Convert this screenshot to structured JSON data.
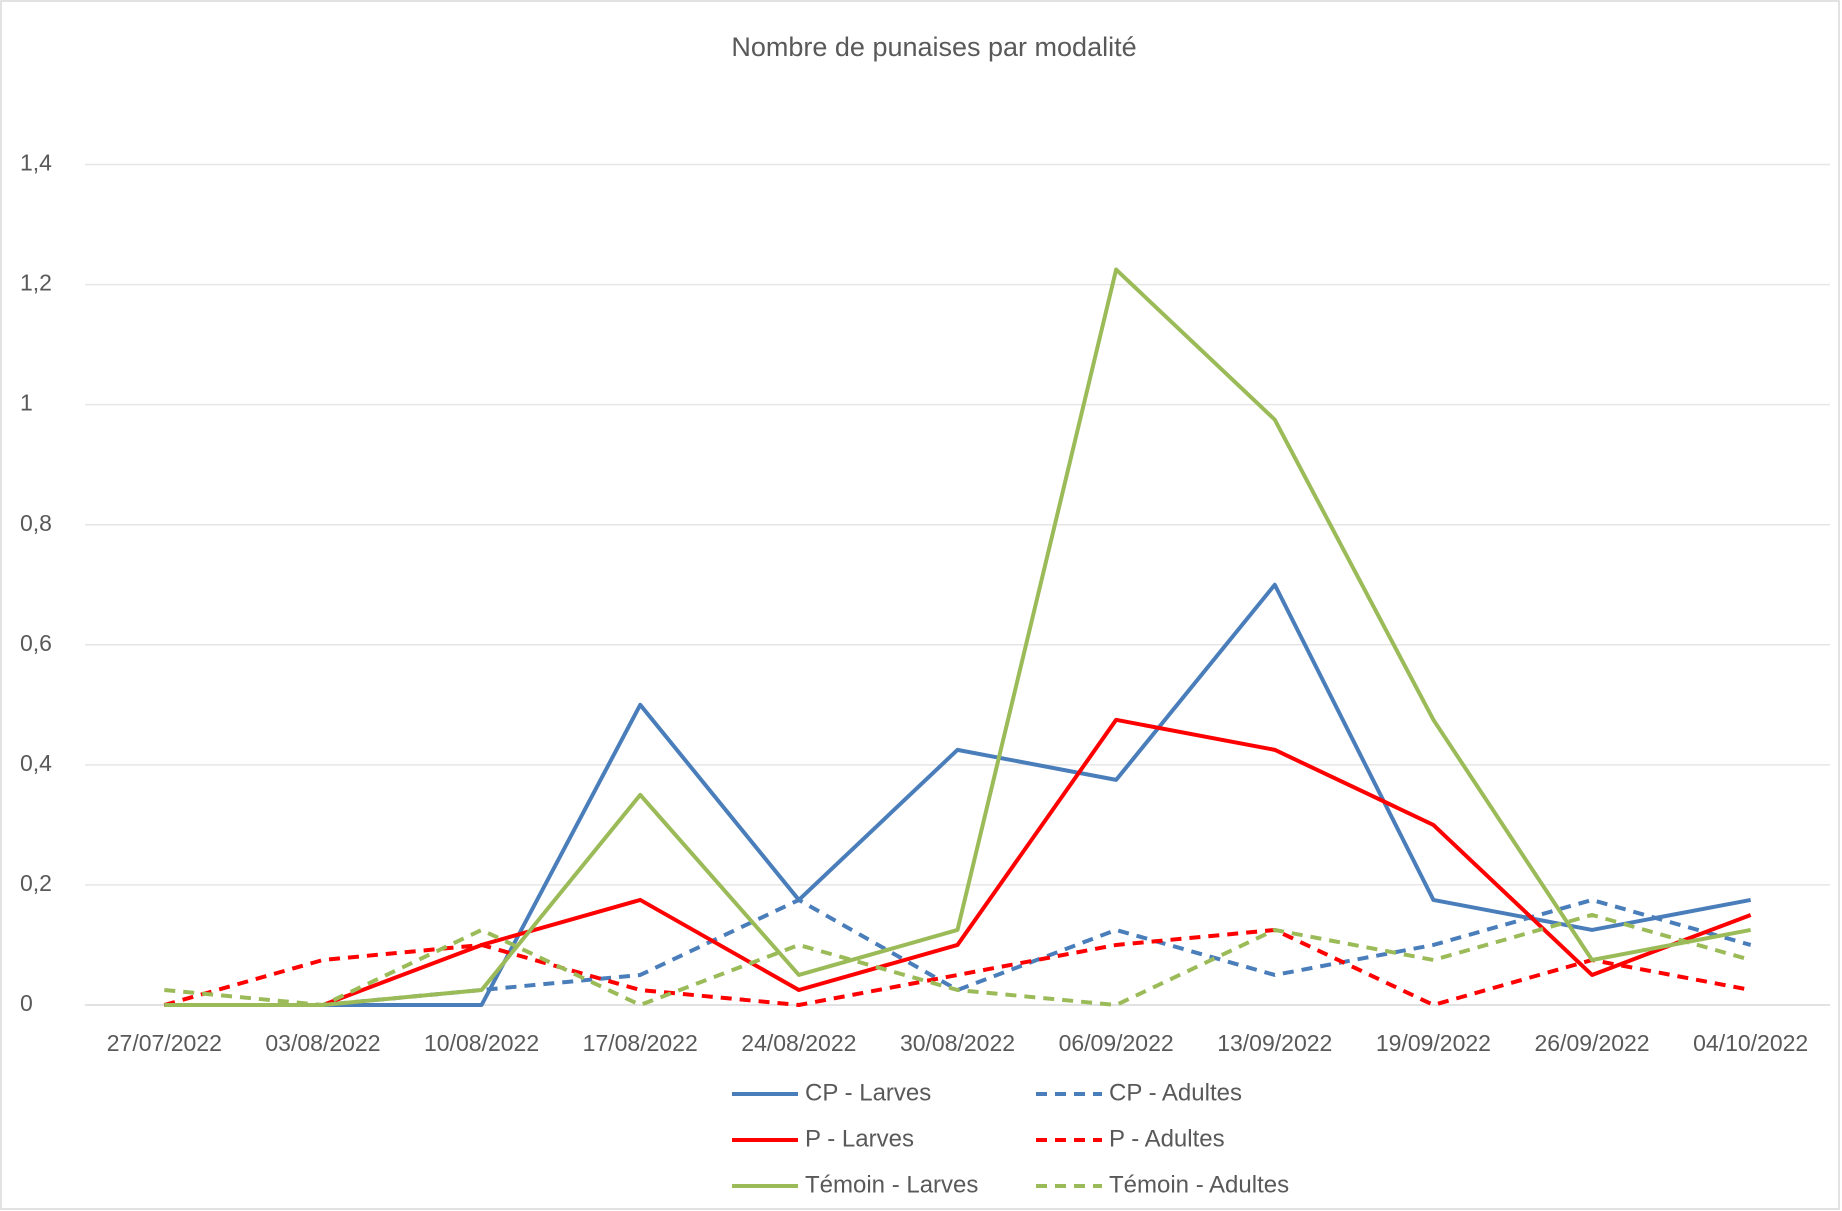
{
  "chart_data": {
    "type": "line",
    "title": "Nombre de punaises par modalité",
    "categories": [
      "27/07/2022",
      "03/08/2022",
      "10/08/2022",
      "17/08/2022",
      "24/08/2022",
      "30/08/2022",
      "06/09/2022",
      "13/09/2022",
      "19/09/2022",
      "26/09/2022",
      "04/10/2022"
    ],
    "series": [
      {
        "name": "CP - Larves",
        "color": "#4a7ebb",
        "dashed": false,
        "values": [
          0,
          0,
          0,
          0.5,
          0.175,
          0.425,
          0.375,
          0.7,
          0.175,
          0.125,
          0.175
        ]
      },
      {
        "name": "CP - Adultes",
        "color": "#4a7ebb",
        "dashed": true,
        "values": [
          0,
          0,
          0.025,
          0.05,
          0.175,
          0.025,
          0.125,
          0.05,
          0.1,
          0.175,
          0.1
        ]
      },
      {
        "name": "P - Larves",
        "color": "#ff0000",
        "dashed": false,
        "values": [
          0,
          0,
          0.1,
          0.175,
          0.025,
          0.1,
          0.475,
          0.425,
          0.3,
          0.05,
          0.15
        ]
      },
      {
        "name": "P - Adultes",
        "color": "#ff0000",
        "dashed": true,
        "values": [
          0,
          0.075,
          0.1,
          0.025,
          0,
          0.05,
          0.1,
          0.125,
          0,
          0.075,
          0.025
        ]
      },
      {
        "name": "Témoin - Larves",
        "color": "#9bbb59",
        "dashed": false,
        "values": [
          0,
          0,
          0.025,
          0.35,
          0.05,
          0.125,
          1.225,
          0.975,
          0.475,
          0.075,
          0.125
        ]
      },
      {
        "name": "Témoin - Adultes",
        "color": "#9bbb59",
        "dashed": true,
        "values": [
          0.025,
          0,
          0.125,
          0,
          0.1,
          0.025,
          0,
          0.125,
          0.075,
          0.15,
          0.075
        ]
      }
    ],
    "ylim": [
      0,
      1.4
    ],
    "yticks": [
      0,
      {
        "value": 0.2,
        "label": "0,2"
      },
      {
        "value": 0.4,
        "label": "0,4"
      },
      {
        "value": 0.6,
        "label": "0,6"
      },
      {
        "value": 0.8,
        "label": "0,8"
      },
      1,
      {
        "value": 1.2,
        "label": "1,2"
      },
      {
        "value": 1.4,
        "label": "1,4"
      }
    ],
    "grid": true,
    "legend": "bottom"
  }
}
